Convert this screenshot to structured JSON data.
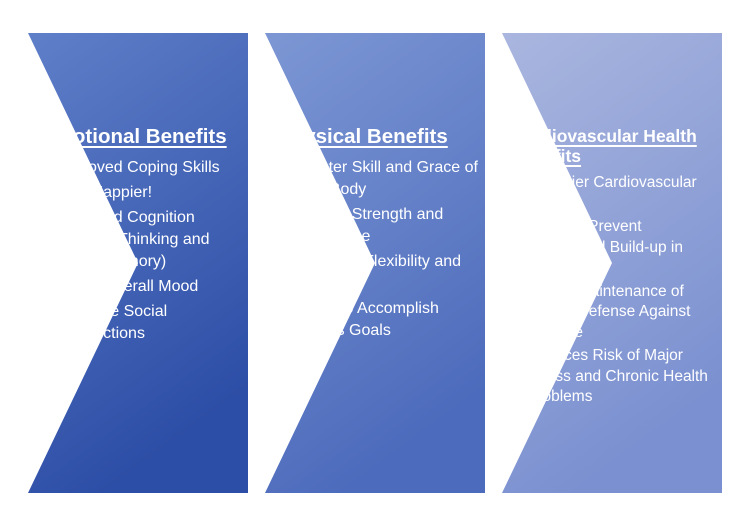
{
  "colors": {
    "panel_1": [
      "#5f7fc9",
      "#2d4ea6"
    ],
    "panel_2": [
      "#7d97d4",
      "#4d6bbc"
    ],
    "panel_3": [
      "#aab6df",
      "#7a90d0"
    ],
    "text": "#ffffff"
  },
  "panels": [
    {
      "title": "Emotional Benefits",
      "items": [
        "Improved Coping Skills",
        "Feel Happier!",
        "Improved Cognition (Clearer Thinking and Better Memory)",
        "Better Overall Mood",
        "Enhance Social Connections"
      ]
    },
    {
      "title": "Physical Benefits",
      "items": [
        "Greater Skill and Grace of Your Body",
        "Greater Strength and Endurance",
        "Improved Flexibility and Agility",
        "Ability to Accomplish Fitness Goals"
      ]
    },
    {
      "title": "Cardiovascular Health Benefits",
      "items": [
        "Healthier Cardiovascular System",
        "Helps to Prevent Cholesterol Build-up in Arteries",
        "Aids in Maintenance of Body’s Defense Against Disease",
        "Reduces Risk of Major Illness and Chronic Health Problems"
      ]
    }
  ]
}
